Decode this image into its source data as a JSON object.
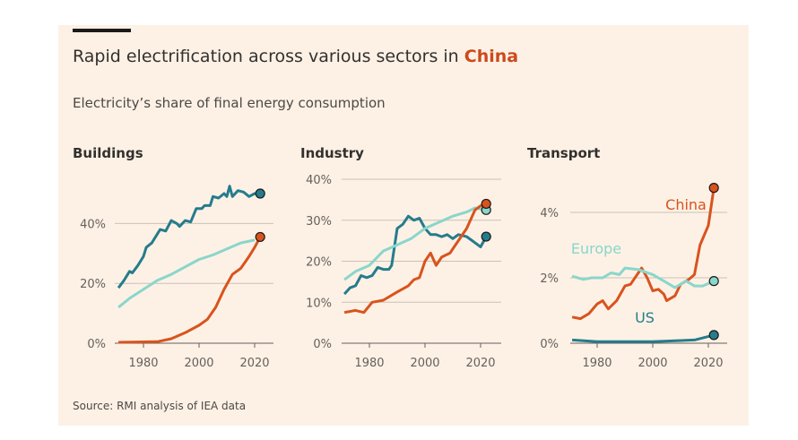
{
  "title_prefix": "Rapid electrification across various sectors in ",
  "title_highlight": "China",
  "subtitle": "Electricity’s share of final energy consumption",
  "source": "Source: RMI analysis of IEA data",
  "colors": {
    "US": "#257c8c",
    "Europe": "#8ad6cb",
    "China": "#d9531e"
  },
  "chart_data": [
    {
      "type": "line",
      "title": "Buildings",
      "xlim": [
        1970,
        2025
      ],
      "ylim": [
        0,
        53
      ],
      "xticks": [
        1980,
        2000,
        2020
      ],
      "yticks": [
        0,
        20,
        40
      ],
      "ytick_labels": [
        "0%",
        "20%",
        "40%"
      ],
      "series": [
        {
          "name": "US",
          "values": [
            [
              1971,
              18.5
            ],
            [
              1973,
              21
            ],
            [
              1975,
              24
            ],
            [
              1976,
              23.5
            ],
            [
              1978,
              26
            ],
            [
              1980,
              29
            ],
            [
              1981,
              32
            ],
            [
              1983,
              33.5
            ],
            [
              1984,
              35
            ],
            [
              1986,
              38
            ],
            [
              1988,
              37.5
            ],
            [
              1990,
              41
            ],
            [
              1992,
              40
            ],
            [
              1993,
              39
            ],
            [
              1995,
              41
            ],
            [
              1997,
              40.5
            ],
            [
              1999,
              45
            ],
            [
              2001,
              45
            ],
            [
              2002,
              46
            ],
            [
              2004,
              46
            ],
            [
              2005,
              49
            ],
            [
              2007,
              48.5
            ],
            [
              2009,
              50
            ],
            [
              2010,
              49
            ],
            [
              2011,
              52.5
            ],
            [
              2012,
              49
            ],
            [
              2014,
              51
            ],
            [
              2016,
              50.5
            ],
            [
              2018,
              49
            ],
            [
              2020,
              50
            ],
            [
              2022,
              50
            ]
          ]
        },
        {
          "name": "Europe",
          "values": [
            [
              1971,
              12
            ],
            [
              1975,
              15
            ],
            [
              1980,
              18
            ],
            [
              1985,
              21
            ],
            [
              1990,
              23
            ],
            [
              1995,
              25.5
            ],
            [
              2000,
              28
            ],
            [
              2005,
              29.5
            ],
            [
              2010,
              31.5
            ],
            [
              2015,
              33.5
            ],
            [
              2020,
              34.5
            ]
          ]
        },
        {
          "name": "China",
          "values": [
            [
              1971,
              0.3
            ],
            [
              1985,
              0.5
            ],
            [
              1990,
              1.5
            ],
            [
              1995,
              3.5
            ],
            [
              2000,
              6
            ],
            [
              2003,
              8
            ],
            [
              2006,
              12
            ],
            [
              2009,
              18
            ],
            [
              2012,
              23
            ],
            [
              2015,
              25
            ],
            [
              2018,
              29
            ],
            [
              2020,
              32
            ],
            [
              2022,
              35.5
            ]
          ]
        }
      ]
    },
    {
      "type": "line",
      "title": "Industry",
      "xlim": [
        1970,
        2025
      ],
      "ylim": [
        0,
        40
      ],
      "xticks": [
        1980,
        2000,
        2020
      ],
      "yticks": [
        0,
        10,
        20,
        30,
        40
      ],
      "ytick_labels": [
        "0%",
        "10%",
        "20%",
        "30%",
        "40%"
      ],
      "series": [
        {
          "name": "US",
          "values": [
            [
              1971,
              12
            ],
            [
              1973,
              13.5
            ],
            [
              1975,
              14
            ],
            [
              1977,
              16.5
            ],
            [
              1979,
              16
            ],
            [
              1981,
              16.5
            ],
            [
              1983,
              18.5
            ],
            [
              1985,
              18
            ],
            [
              1987,
              18
            ],
            [
              1988,
              19
            ],
            [
              1990,
              28
            ],
            [
              1992,
              29
            ],
            [
              1994,
              31
            ],
            [
              1996,
              30
            ],
            [
              1998,
              30.5
            ],
            [
              2000,
              28
            ],
            [
              2002,
              26.5
            ],
            [
              2004,
              26.5
            ],
            [
              2006,
              26
            ],
            [
              2008,
              26.5
            ],
            [
              2010,
              25.5
            ],
            [
              2012,
              26.5
            ],
            [
              2015,
              26
            ],
            [
              2017,
              25
            ],
            [
              2019,
              24
            ],
            [
              2020,
              23.5
            ],
            [
              2022,
              26
            ]
          ]
        },
        {
          "name": "Europe",
          "values": [
            [
              1971,
              15.5
            ],
            [
              1975,
              17.5
            ],
            [
              1980,
              19
            ],
            [
              1985,
              22.5
            ],
            [
              1990,
              24
            ],
            [
              1995,
              25.5
            ],
            [
              2000,
              28
            ],
            [
              2005,
              29.5
            ],
            [
              2010,
              31
            ],
            [
              2015,
              32
            ],
            [
              2018,
              33
            ],
            [
              2022,
              32.5
            ]
          ]
        },
        {
          "name": "China",
          "values": [
            [
              1971,
              7.5
            ],
            [
              1975,
              8
            ],
            [
              1978,
              7.5
            ],
            [
              1981,
              10
            ],
            [
              1985,
              10.5
            ],
            [
              1990,
              12.5
            ],
            [
              1994,
              14
            ],
            [
              1996,
              15.5
            ],
            [
              1998,
              16
            ],
            [
              2000,
              20
            ],
            [
              2002,
              22
            ],
            [
              2004,
              19
            ],
            [
              2006,
              21
            ],
            [
              2009,
              22
            ],
            [
              2012,
              25
            ],
            [
              2015,
              28
            ],
            [
              2018,
              32.5
            ],
            [
              2020,
              33.5
            ],
            [
              2022,
              34
            ]
          ]
        }
      ]
    },
    {
      "type": "line",
      "title": "Transport",
      "xlim": [
        1970,
        2025
      ],
      "ylim": [
        0,
        5
      ],
      "xticks": [
        1980,
        2000,
        2020
      ],
      "yticks": [
        0,
        2,
        4
      ],
      "ytick_labels": [
        "0%",
        "2%",
        "4%"
      ],
      "series": [
        {
          "name": "China",
          "label": "China",
          "values": [
            [
              1971,
              0.8
            ],
            [
              1974,
              0.75
            ],
            [
              1977,
              0.9
            ],
            [
              1980,
              1.2
            ],
            [
              1982,
              1.3
            ],
            [
              1984,
              1.05
            ],
            [
              1987,
              1.3
            ],
            [
              1990,
              1.75
            ],
            [
              1992,
              1.8
            ],
            [
              1994,
              2.05
            ],
            [
              1996,
              2.3
            ],
            [
              1998,
              2.0
            ],
            [
              2000,
              1.6
            ],
            [
              2002,
              1.65
            ],
            [
              2004,
              1.5
            ],
            [
              2005,
              1.3
            ],
            [
              2008,
              1.45
            ],
            [
              2010,
              1.8
            ],
            [
              2013,
              1.95
            ],
            [
              2015,
              2.1
            ],
            [
              2017,
              3.0
            ],
            [
              2020,
              3.6
            ],
            [
              2022,
              4.75
            ]
          ]
        },
        {
          "name": "Europe",
          "label": "Europe",
          "values": [
            [
              1971,
              2.05
            ],
            [
              1975,
              1.95
            ],
            [
              1978,
              2.0
            ],
            [
              1982,
              2.0
            ],
            [
              1985,
              2.15
            ],
            [
              1988,
              2.1
            ],
            [
              1990,
              2.3
            ],
            [
              1995,
              2.25
            ],
            [
              2000,
              2.1
            ],
            [
              2004,
              1.9
            ],
            [
              2008,
              1.7
            ],
            [
              2012,
              1.9
            ],
            [
              2015,
              1.75
            ],
            [
              2018,
              1.75
            ],
            [
              2022,
              1.9
            ]
          ]
        },
        {
          "name": "US",
          "label": "US",
          "values": [
            [
              1971,
              0.1
            ],
            [
              1980,
              0.05
            ],
            [
              2000,
              0.05
            ],
            [
              2015,
              0.1
            ],
            [
              2022,
              0.25
            ]
          ]
        }
      ]
    }
  ]
}
